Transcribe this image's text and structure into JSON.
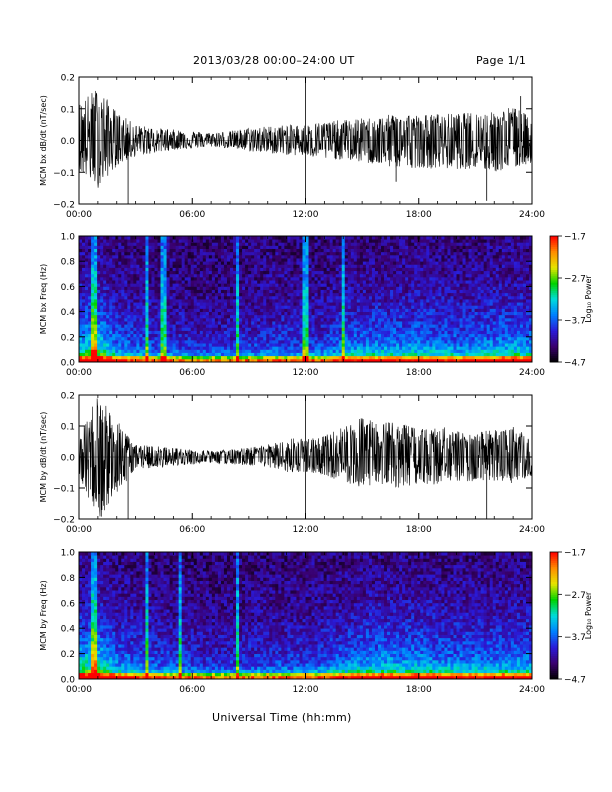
{
  "header": {
    "title": "2013/03/28  00:00–24:00 UT",
    "page": "Page 1/1"
  },
  "footer": {
    "xlabel": "Universal Time (hh:mm)"
  },
  "colors": {
    "trace": "#000000",
    "background": "#ffffff",
    "colormap": [
      "#000000",
      "#3a006e",
      "#2a1ad8",
      "#0080ff",
      "#00dcdc",
      "#00d200",
      "#e6e600",
      "#ff8c00",
      "#ff0000"
    ]
  },
  "chart_data": [
    {
      "type": "line",
      "ylabel": "MCM bx dB/dt (nT/sec)",
      "xlim": [
        "00:00",
        "24:00"
      ],
      "ylim": [
        -0.2,
        0.2
      ],
      "xticks": [
        "00:00",
        "06:00",
        "12:00",
        "18:00",
        "24:00"
      ],
      "yticks": [
        "-0.2",
        "-0.1",
        "0.0",
        "0.1",
        "0.2"
      ],
      "series": [
        {
          "x": [
            "00:00",
            "01:00",
            "02:00",
            "03:00",
            "04:00",
            "05:00",
            "06:00",
            "07:00",
            "08:00",
            "09:00",
            "10:00",
            "11:00",
            "12:00",
            "13:00",
            "14:00",
            "15:00",
            "16:00",
            "17:00",
            "18:00",
            "19:00",
            "20:00",
            "21:00",
            "22:00",
            "23:00",
            "24:00"
          ],
          "envelope_max": [
            0.12,
            0.17,
            0.09,
            0.05,
            0.04,
            0.035,
            0.03,
            0.025,
            0.03,
            0.04,
            0.045,
            0.05,
            0.05,
            0.06,
            0.065,
            0.07,
            0.075,
            0.09,
            0.08,
            0.085,
            0.085,
            0.09,
            0.09,
            0.11,
            0.07
          ],
          "envelope_min": [
            -0.1,
            -0.15,
            -0.08,
            -0.05,
            -0.04,
            -0.03,
            -0.025,
            -0.02,
            -0.025,
            -0.035,
            -0.04,
            -0.045,
            -0.05,
            -0.06,
            -0.06,
            -0.07,
            -0.08,
            -0.09,
            -0.085,
            -0.09,
            -0.09,
            -0.09,
            -0.1,
            -0.09,
            -0.07
          ],
          "spikes": [
            {
              "x": "02:36",
              "y": -0.21
            },
            {
              "x": "12:00",
              "y": 0.21
            },
            {
              "x": "12:00",
              "y": -0.21
            },
            {
              "x": "21:36",
              "y": -0.19
            },
            {
              "x": "16:48",
              "y": -0.13
            },
            {
              "x": "23:24",
              "y": 0.14
            }
          ]
        }
      ]
    },
    {
      "type": "heatmap",
      "ylabel": "MCM bx Freq (Hz)",
      "xlim": [
        "00:00",
        "24:00"
      ],
      "ylim": [
        0.0,
        1.0
      ],
      "xticks": [
        "00:00",
        "06:00",
        "12:00",
        "18:00",
        "24:00"
      ],
      "yticks": [
        "0.0",
        "0.2",
        "0.4",
        "0.6",
        "0.8",
        "1.0"
      ],
      "colorbar": {
        "label": "Log10 Power",
        "ticks": [
          "-1.7",
          "-2.7",
          "-3.7",
          "-4.7"
        ],
        "range": [
          -4.7,
          -1.7
        ]
      },
      "activity_profile": [
        0.8,
        0.95,
        0.55,
        0.45,
        0.4,
        0.35,
        0.3,
        0.28,
        0.3,
        0.35,
        0.4,
        0.4,
        0.38,
        0.4,
        0.55,
        0.6,
        0.62,
        0.6,
        0.65,
        0.6,
        0.55,
        0.58,
        0.65,
        0.7,
        0.6
      ],
      "vertical_lines": [
        "00:48",
        "03:36",
        "04:30",
        "08:24",
        "12:00",
        "14:00"
      ]
    },
    {
      "type": "line",
      "ylabel": "MCM by dB/dt (nT/sec)",
      "xlim": [
        "00:00",
        "24:00"
      ],
      "ylim": [
        -0.2,
        0.2
      ],
      "xticks": [
        "00:00",
        "06:00",
        "12:00",
        "18:00",
        "24:00"
      ],
      "yticks": [
        "-0.2",
        "-0.1",
        "0.0",
        "0.1",
        "0.2"
      ],
      "series": [
        {
          "x": [
            "00:00",
            "01:00",
            "02:00",
            "03:00",
            "04:00",
            "05:00",
            "06:00",
            "07:00",
            "08:00",
            "09:00",
            "10:00",
            "11:00",
            "12:00",
            "13:00",
            "14:00",
            "15:00",
            "16:00",
            "17:00",
            "18:00",
            "19:00",
            "20:00",
            "21:00",
            "22:00",
            "23:00",
            "24:00"
          ],
          "envelope_max": [
            0.06,
            0.21,
            0.12,
            0.04,
            0.035,
            0.03,
            0.025,
            0.02,
            0.025,
            0.03,
            0.04,
            0.06,
            0.06,
            0.07,
            0.1,
            0.13,
            0.12,
            0.11,
            0.09,
            0.1,
            0.09,
            0.08,
            0.09,
            0.1,
            0.06
          ],
          "envelope_min": [
            -0.06,
            -0.21,
            -0.12,
            -0.04,
            -0.035,
            -0.03,
            -0.025,
            -0.02,
            -0.025,
            -0.03,
            -0.035,
            -0.05,
            -0.05,
            -0.06,
            -0.08,
            -0.1,
            -0.09,
            -0.1,
            -0.09,
            -0.09,
            -0.08,
            -0.08,
            -0.08,
            -0.09,
            -0.06
          ],
          "spikes": [
            {
              "x": "02:36",
              "y": -0.21
            },
            {
              "x": "12:00",
              "y": 0.21
            },
            {
              "x": "12:00",
              "y": -0.21
            },
            {
              "x": "21:36",
              "y": -0.21
            }
          ]
        }
      ]
    },
    {
      "type": "heatmap",
      "ylabel": "MCM by Freq (Hz)",
      "xlim": [
        "00:00",
        "24:00"
      ],
      "ylim": [
        0.0,
        1.0
      ],
      "xticks": [
        "00:00",
        "06:00",
        "12:00",
        "18:00",
        "24:00"
      ],
      "yticks": [
        "0.0",
        "0.2",
        "0.4",
        "0.6",
        "0.8",
        "1.0"
      ],
      "colorbar": {
        "label": "Log10 Power",
        "ticks": [
          "-1.7",
          "-2.7",
          "-3.7",
          "-4.7"
        ],
        "range": [
          -4.7,
          -1.7
        ]
      },
      "activity_profile": [
        0.9,
        0.95,
        0.6,
        0.5,
        0.45,
        0.4,
        0.35,
        0.3,
        0.3,
        0.35,
        0.38,
        0.38,
        0.4,
        0.45,
        0.55,
        0.65,
        0.7,
        0.68,
        0.7,
        0.62,
        0.6,
        0.6,
        0.62,
        0.65,
        0.6
      ],
      "vertical_lines": [
        "00:48",
        "03:36",
        "05:24",
        "08:24"
      ]
    }
  ]
}
